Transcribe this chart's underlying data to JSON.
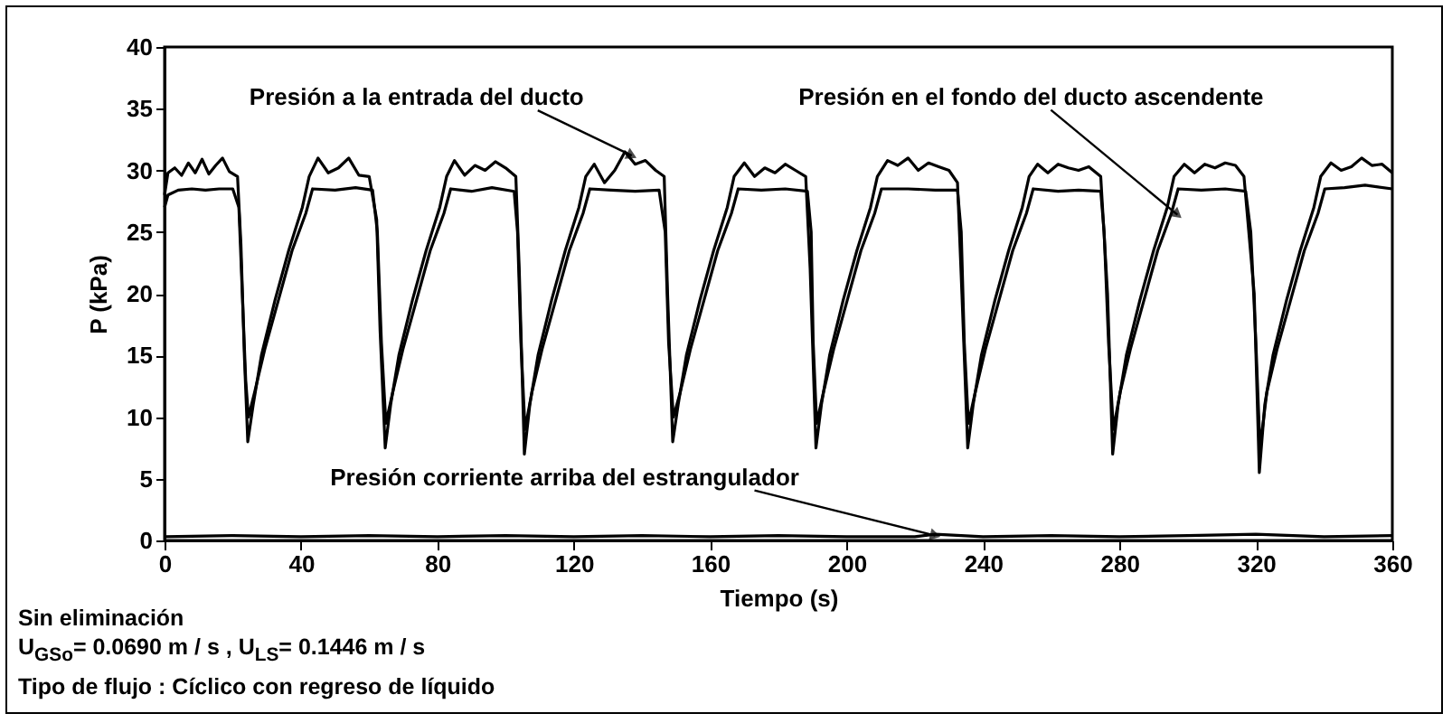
{
  "chart_data": {
    "type": "line",
    "xlabel": "Tiempo (s)",
    "ylabel": "P (kPa)",
    "xlim": [
      0,
      360
    ],
    "ylim": [
      0,
      40
    ],
    "xticks": [
      0,
      40,
      80,
      120,
      160,
      200,
      240,
      280,
      320,
      360
    ],
    "yticks": [
      0,
      5,
      10,
      15,
      20,
      25,
      30,
      35,
      40
    ],
    "grid": false,
    "line_style": "solid",
    "marker": "none",
    "series": [
      {
        "color": "#000000",
        "x": [
          0,
          1,
          3,
          5,
          7,
          9,
          11,
          13,
          15,
          17,
          19,
          21.4,
          22.4,
          23.4,
          24.4,
          26,
          28.4,
          32.4,
          36.4,
          40.4,
          42.4,
          45,
          48,
          51,
          54,
          57,
          60,
          62.2,
          63.2,
          64.7,
          66.3,
          68.7,
          72.7,
          76.7,
          80.7,
          82.7,
          85,
          88,
          91,
          94,
          97,
          100,
          103,
          104,
          105.5,
          107.1,
          109.5,
          113.5,
          117.5,
          121.5,
          123.5,
          126,
          129,
          132,
          135,
          138,
          141,
          144,
          146.5,
          147.5,
          149,
          150.6,
          153,
          157,
          161,
          165,
          167,
          170,
          173,
          176,
          179,
          182,
          185,
          188,
          189.3,
          191,
          192.6,
          195,
          199,
          203,
          207,
          209,
          212,
          215,
          218,
          221,
          224,
          227,
          230,
          232.5,
          233.8,
          235.5,
          237.1,
          239.5,
          243.5,
          247.5,
          251.5,
          253.5,
          256,
          259,
          262,
          265,
          268,
          271,
          274.5,
          276.5,
          278,
          279.6,
          282,
          286,
          290,
          294,
          296,
          299,
          302,
          305,
          308,
          311,
          314,
          316.5,
          319.5,
          321,
          322.6,
          325,
          329,
          333,
          337,
          339,
          342,
          345,
          348,
          351,
          354,
          357,
          360
        ],
        "values": [
          28,
          29.8,
          30.2,
          29.6,
          30.6,
          29.8,
          30.9,
          29.7,
          30.4,
          31,
          29.9,
          29.5,
          24,
          15,
          8,
          11,
          15,
          19.5,
          23.5,
          27,
          29.5,
          31,
          29.8,
          30.2,
          31,
          29.6,
          29.5,
          26,
          17,
          7.5,
          11,
          15,
          19.5,
          23.5,
          27,
          29.5,
          30.8,
          29.6,
          30.4,
          30,
          30.7,
          30.2,
          29.5,
          22,
          7,
          11,
          15,
          19.5,
          23.5,
          27,
          29.5,
          30.5,
          29,
          30,
          31.5,
          30.5,
          30.8,
          30,
          29.5,
          20,
          8,
          11,
          15,
          19.5,
          23.5,
          27,
          29.5,
          30.6,
          29.5,
          30.2,
          29.8,
          30.5,
          30,
          29.5,
          22,
          7.5,
          11,
          15,
          19.5,
          23.5,
          27,
          29.5,
          30.8,
          30.4,
          31,
          30,
          30.6,
          30.3,
          30,
          29,
          20,
          7.5,
          11,
          15,
          19.5,
          23.5,
          27,
          29.5,
          30.5,
          29.8,
          30.5,
          30.2,
          30,
          30.3,
          29.5,
          20,
          7,
          11,
          15,
          19.5,
          23.5,
          27,
          29.5,
          30.5,
          29.8,
          30.5,
          30.2,
          30.6,
          30.4,
          29.5,
          20,
          5.5,
          11,
          15,
          19.5,
          23.5,
          27,
          29.5,
          30.6,
          30,
          30.3,
          31,
          30.4,
          30.5,
          29.8
        ]
      },
      {
        "color": "#000000",
        "x": [
          0,
          1,
          4,
          8,
          12,
          16,
          20,
          21.8,
          22.8,
          23.8,
          24.6,
          26.4,
          29.4,
          33.4,
          37.4,
          41.4,
          43.4,
          50,
          56,
          61,
          62.4,
          63.6,
          64.9,
          66.9,
          69.9,
          73.9,
          77.9,
          81.9,
          83.9,
          90,
          96,
          102.5,
          103.5,
          104.5,
          105.7,
          107.7,
          110.7,
          114.7,
          118.7,
          122.7,
          124.7,
          131,
          138,
          145,
          146.8,
          147.8,
          149.2,
          151.2,
          154.2,
          158.2,
          162.2,
          166.2,
          168.2,
          175,
          182,
          188.5,
          189.6,
          190.2,
          191.2,
          193.2,
          196.2,
          200.2,
          204.2,
          208.2,
          210.2,
          218,
          226,
          232.5,
          233.6,
          234.5,
          235.7,
          237.7,
          240.7,
          244.7,
          248.7,
          252.7,
          254.7,
          262,
          268,
          274.5,
          275.5,
          276.8,
          278.2,
          280.2,
          283.2,
          287.2,
          291.2,
          295.2,
          297.2,
          304,
          311,
          317,
          318.5,
          320,
          321.2,
          323.2,
          326.2,
          330.2,
          334.2,
          338.2,
          340.2,
          346,
          352,
          360
        ],
        "values": [
          27,
          28,
          28.4,
          28.5,
          28.4,
          28.5,
          28.5,
          27,
          20,
          13,
          10,
          12,
          15.5,
          19.5,
          23.5,
          26.5,
          28.5,
          28.4,
          28.6,
          28.4,
          25,
          16,
          9.5,
          12,
          15.5,
          19.5,
          23.5,
          26.5,
          28.5,
          28.3,
          28.6,
          28.3,
          25,
          16,
          9,
          12,
          15.5,
          19.5,
          23.5,
          26.5,
          28.5,
          28.4,
          28.3,
          28.4,
          25,
          16,
          10,
          12,
          15.5,
          19.5,
          23.5,
          26.5,
          28.5,
          28.4,
          28.5,
          28.3,
          25,
          16,
          9.5,
          12,
          15.5,
          19.5,
          23.5,
          26.5,
          28.5,
          28.5,
          28.4,
          28.4,
          25,
          16,
          9.5,
          12,
          15.5,
          19.5,
          23.5,
          26.5,
          28.5,
          28.3,
          28.4,
          28.3,
          25,
          16,
          9,
          12,
          15.5,
          19.5,
          23.5,
          26.5,
          28.5,
          28.4,
          28.5,
          28.3,
          25,
          16,
          7.5,
          12,
          15.5,
          19.5,
          23.5,
          26.5,
          28.5,
          28.6,
          28.8,
          28.5
        ]
      },
      {
        "color": "#000000",
        "x": [
          0,
          20,
          40,
          60,
          80,
          100,
          120,
          140,
          160,
          180,
          200,
          220,
          226,
          240,
          260,
          280,
          300,
          320,
          340,
          360
        ],
        "values": [
          0.3,
          0.4,
          0.3,
          0.4,
          0.3,
          0.4,
          0.3,
          0.4,
          0.3,
          0.4,
          0.3,
          0.3,
          0.5,
          0.3,
          0.4,
          0.3,
          0.4,
          0.5,
          0.3,
          0.4
        ]
      }
    ],
    "annotations": [
      {
        "text": "Presión a  la entrada del ducto",
        "x": 137,
        "y": 31.2
      },
      {
        "text": "Presión en el fondo del ducto ascendente",
        "x": 297,
        "y": 26.4
      },
      {
        "text": "Presión corriente arriba del estrangulador",
        "x": 226,
        "y": 0.4
      },
      "Sin eliminación",
      "U$_{GSo}$= 0.0690 m / s , U$_{LS}$= 0.1446 m / s",
      "Tipo  de flujo :  Cíclico con regreso de líquido"
    ]
  }
}
